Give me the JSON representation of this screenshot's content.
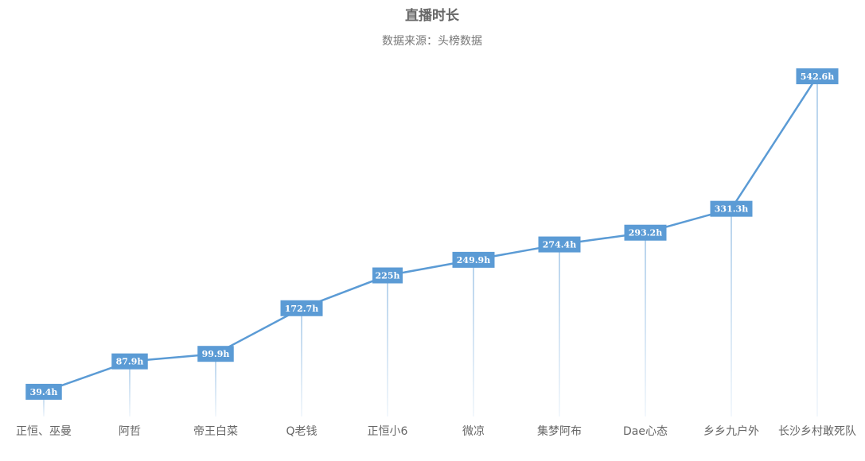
{
  "chart_data": {
    "type": "line",
    "title": "直播时长",
    "subtitle": "数据来源：头榜数据",
    "categories": [
      "正恒、巫曼",
      "阿哲",
      "帝王白菜",
      "Q老钱",
      "正恒小6",
      "微凉",
      "集梦阿布",
      "Dae心态",
      "乡乡九户外",
      "长沙乡村敢死队"
    ],
    "values": [
      39.4,
      87.9,
      99.9,
      172.7,
      225,
      249.9,
      274.4,
      293.2,
      331.3,
      542.6
    ],
    "value_labels": [
      "39.4h",
      "87.9h",
      "99.9h",
      "172.7h",
      "225h",
      "249.9h",
      "274.4h",
      "293.2h",
      "331.3h",
      "542.6h"
    ],
    "color": "#5b9bd5"
  }
}
